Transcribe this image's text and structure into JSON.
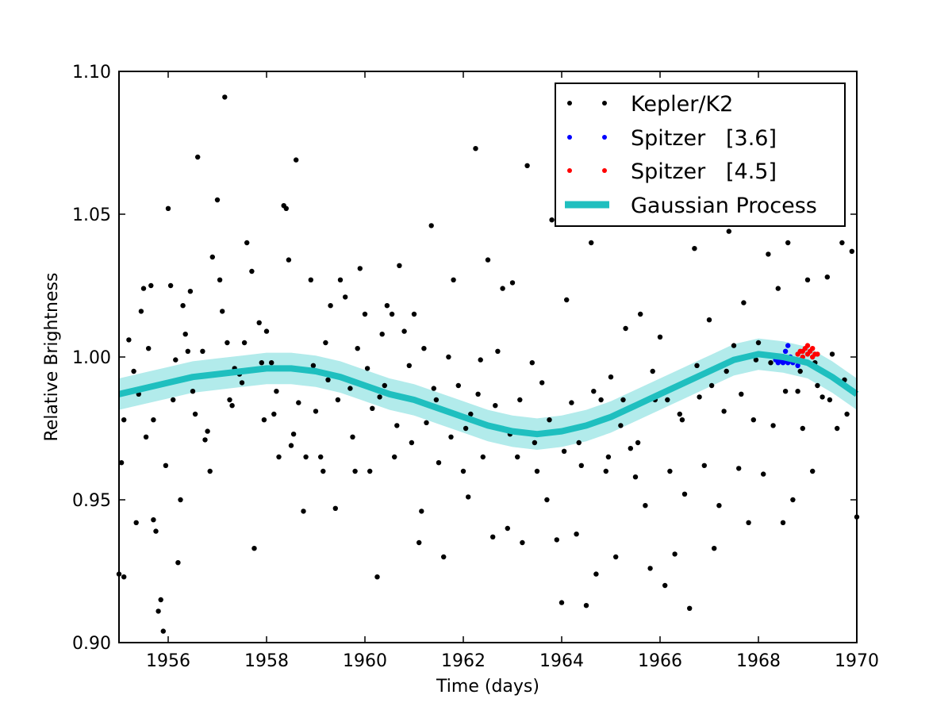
{
  "chart_data": {
    "type": "scatter",
    "title": "",
    "xlabel": "Time (days)",
    "ylabel": "Relative Brightness",
    "xlim": [
      1955,
      1970
    ],
    "ylim": [
      0.9,
      1.1
    ],
    "x_ticks": [
      1956,
      1958,
      1960,
      1962,
      1964,
      1966,
      1968,
      1970
    ],
    "x_tick_labels": [
      "1956",
      "1958",
      "1960",
      "1962",
      "1964",
      "1966",
      "1968",
      "1970"
    ],
    "y_ticks": [
      0.9,
      0.95,
      1.0,
      1.05,
      1.1
    ],
    "y_tick_labels": [
      "0.90",
      "0.95",
      "1.00",
      "1.05",
      "1.10"
    ],
    "grid": false,
    "legend_position": "top-right",
    "colors": {
      "kepler": "#000000",
      "spitzer36": "#0000ff",
      "spitzer45": "#ff0000",
      "gp_line": "#1fbfbf",
      "gp_band": "#b2ebeb"
    },
    "series": [
      {
        "name": "Kepler/K2",
        "kind": "points",
        "points": [
          [
            1955.0,
            0.924
          ],
          [
            1955.1,
            0.923
          ],
          [
            1955.05,
            0.963
          ],
          [
            1955.1,
            0.978
          ],
          [
            1955.2,
            1.006
          ],
          [
            1955.3,
            0.995
          ],
          [
            1955.35,
            0.942
          ],
          [
            1955.45,
            1.016
          ],
          [
            1955.5,
            1.024
          ],
          [
            1955.6,
            1.003
          ],
          [
            1955.55,
            0.972
          ],
          [
            1955.65,
            1.025
          ],
          [
            1955.7,
            0.943
          ],
          [
            1955.75,
            0.939
          ],
          [
            1955.8,
            0.911
          ],
          [
            1955.85,
            0.915
          ],
          [
            1955.9,
            0.904
          ],
          [
            1955.95,
            0.962
          ],
          [
            1956.0,
            1.052
          ],
          [
            1956.05,
            1.025
          ],
          [
            1956.1,
            0.985
          ],
          [
            1956.2,
            0.928
          ],
          [
            1956.25,
            0.95
          ],
          [
            1956.3,
            1.018
          ],
          [
            1956.35,
            1.008
          ],
          [
            1956.4,
            1.002
          ],
          [
            1956.45,
            1.023
          ],
          [
            1956.55,
            0.98
          ],
          [
            1956.6,
            1.07
          ],
          [
            1956.7,
            1.002
          ],
          [
            1956.75,
            0.971
          ],
          [
            1956.85,
            0.96
          ],
          [
            1956.9,
            1.035
          ],
          [
            1957.0,
            1.055
          ],
          [
            1957.05,
            1.027
          ],
          [
            1957.1,
            1.016
          ],
          [
            1957.15,
            1.091
          ],
          [
            1957.2,
            1.005
          ],
          [
            1957.3,
            0.983
          ],
          [
            1957.35,
            0.996
          ],
          [
            1957.45,
            0.994
          ],
          [
            1957.5,
            0.991
          ],
          [
            1957.6,
            1.04
          ],
          [
            1957.7,
            1.03
          ],
          [
            1957.75,
            0.933
          ],
          [
            1957.85,
            1.012
          ],
          [
            1957.9,
            0.998
          ],
          [
            1958.0,
            1.009
          ],
          [
            1958.1,
            0.998
          ],
          [
            1958.15,
            0.98
          ],
          [
            1958.25,
            0.965
          ],
          [
            1958.35,
            1.053
          ],
          [
            1958.4,
            1.052
          ],
          [
            1958.45,
            1.034
          ],
          [
            1958.5,
            0.969
          ],
          [
            1958.6,
            1.069
          ],
          [
            1958.65,
            0.984
          ],
          [
            1958.75,
            0.946
          ],
          [
            1958.8,
            0.965
          ],
          [
            1958.9,
            1.027
          ],
          [
            1959.0,
            0.981
          ],
          [
            1959.1,
            0.965
          ],
          [
            1959.15,
            0.96
          ],
          [
            1959.25,
            0.992
          ],
          [
            1959.3,
            1.018
          ],
          [
            1959.4,
            0.947
          ],
          [
            1959.5,
            1.027
          ],
          [
            1959.6,
            1.021
          ],
          [
            1959.7,
            0.989
          ],
          [
            1959.75,
            0.972
          ],
          [
            1959.85,
            1.003
          ],
          [
            1959.9,
            1.031
          ],
          [
            1960.0,
            1.015
          ],
          [
            1960.1,
            0.96
          ],
          [
            1960.15,
            0.982
          ],
          [
            1960.25,
            0.923
          ],
          [
            1960.35,
            1.008
          ],
          [
            1960.4,
            0.99
          ],
          [
            1960.45,
            1.018
          ],
          [
            1960.55,
            1.015
          ],
          [
            1960.6,
            0.965
          ],
          [
            1960.7,
            1.032
          ],
          [
            1960.8,
            1.009
          ],
          [
            1960.9,
            0.997
          ],
          [
            1961.0,
            1.015
          ],
          [
            1961.1,
            0.935
          ],
          [
            1961.15,
            0.946
          ],
          [
            1961.25,
            0.977
          ],
          [
            1961.35,
            1.046
          ],
          [
            1961.4,
            0.989
          ],
          [
            1961.5,
            0.963
          ],
          [
            1961.6,
            0.93
          ],
          [
            1961.7,
            1.0
          ],
          [
            1961.8,
            1.027
          ],
          [
            1961.9,
            0.99
          ],
          [
            1962.0,
            0.96
          ],
          [
            1962.1,
            0.951
          ],
          [
            1962.15,
            0.98
          ],
          [
            1962.25,
            1.073
          ],
          [
            1962.3,
            0.987
          ],
          [
            1962.4,
            0.965
          ],
          [
            1962.5,
            1.034
          ],
          [
            1962.6,
            0.937
          ],
          [
            1962.7,
            1.002
          ],
          [
            1962.8,
            1.024
          ],
          [
            1962.9,
            0.94
          ],
          [
            1963.0,
            1.026
          ],
          [
            1963.1,
            0.965
          ],
          [
            1963.2,
            0.935
          ],
          [
            1963.3,
            1.067
          ],
          [
            1963.4,
            0.998
          ],
          [
            1963.5,
            0.96
          ],
          [
            1963.6,
            0.991
          ],
          [
            1963.7,
            0.95
          ],
          [
            1963.8,
            1.048
          ],
          [
            1963.9,
            0.936
          ],
          [
            1964.0,
            0.914
          ],
          [
            1964.1,
            1.02
          ],
          [
            1964.2,
            0.984
          ],
          [
            1964.3,
            0.938
          ],
          [
            1964.4,
            0.962
          ],
          [
            1964.5,
            0.913
          ],
          [
            1964.6,
            1.04
          ],
          [
            1964.7,
            0.924
          ],
          [
            1964.8,
            0.985
          ],
          [
            1964.9,
            0.96
          ],
          [
            1965.0,
            0.993
          ],
          [
            1965.1,
            0.93
          ],
          [
            1965.2,
            0.976
          ],
          [
            1965.3,
            1.01
          ],
          [
            1965.4,
            0.968
          ],
          [
            1965.5,
            0.958
          ],
          [
            1965.6,
            1.015
          ],
          [
            1965.7,
            0.948
          ],
          [
            1965.8,
            0.926
          ],
          [
            1965.9,
            0.985
          ],
          [
            1966.0,
            1.007
          ],
          [
            1966.1,
            0.92
          ],
          [
            1966.2,
            0.96
          ],
          [
            1966.3,
            0.931
          ],
          [
            1966.4,
            0.98
          ],
          [
            1966.5,
            0.952
          ],
          [
            1966.6,
            0.912
          ],
          [
            1966.7,
            1.038
          ],
          [
            1966.8,
            0.986
          ],
          [
            1966.9,
            0.962
          ],
          [
            1967.0,
            1.013
          ],
          [
            1967.1,
            0.933
          ],
          [
            1967.2,
            0.948
          ],
          [
            1967.3,
            0.981
          ],
          [
            1967.4,
            1.044
          ],
          [
            1967.5,
            1.004
          ],
          [
            1967.6,
            0.961
          ],
          [
            1967.7,
            1.019
          ],
          [
            1967.8,
            0.942
          ],
          [
            1967.9,
            0.978
          ],
          [
            1968.0,
            1.005
          ],
          [
            1968.1,
            0.959
          ],
          [
            1968.2,
            1.036
          ],
          [
            1968.3,
            0.976
          ],
          [
            1968.4,
            1.024
          ],
          [
            1968.5,
            0.942
          ],
          [
            1968.6,
            1.04
          ],
          [
            1968.7,
            0.95
          ],
          [
            1968.8,
            0.988
          ],
          [
            1968.9,
            0.975
          ],
          [
            1969.0,
            1.027
          ],
          [
            1969.1,
            0.96
          ],
          [
            1969.2,
            0.99
          ],
          [
            1969.3,
            0.986
          ],
          [
            1969.4,
            1.028
          ],
          [
            1969.5,
            1.001
          ],
          [
            1969.6,
            0.975
          ],
          [
            1969.7,
            1.04
          ],
          [
            1969.8,
            0.98
          ],
          [
            1969.9,
            1.037
          ],
          [
            1970.0,
            0.944
          ],
          [
            1955.4,
            0.987
          ],
          [
            1955.7,
            0.978
          ],
          [
            1956.15,
            0.999
          ],
          [
            1956.5,
            0.988
          ],
          [
            1956.8,
            0.974
          ],
          [
            1957.25,
            0.985
          ],
          [
            1957.55,
            1.005
          ],
          [
            1957.95,
            0.978
          ],
          [
            1958.2,
            0.988
          ],
          [
            1958.55,
            0.973
          ],
          [
            1958.95,
            0.997
          ],
          [
            1959.2,
            1.005
          ],
          [
            1959.45,
            0.985
          ],
          [
            1959.8,
            0.96
          ],
          [
            1960.05,
            0.996
          ],
          [
            1960.3,
            0.986
          ],
          [
            1960.65,
            0.976
          ],
          [
            1960.95,
            0.97
          ],
          [
            1961.2,
            1.003
          ],
          [
            1961.45,
            0.985
          ],
          [
            1961.75,
            0.972
          ],
          [
            1962.05,
            0.975
          ],
          [
            1962.35,
            0.999
          ],
          [
            1962.65,
            0.983
          ],
          [
            1962.95,
            0.973
          ],
          [
            1963.15,
            0.985
          ],
          [
            1963.45,
            0.97
          ],
          [
            1963.75,
            0.978
          ],
          [
            1964.05,
            0.967
          ],
          [
            1964.35,
            0.97
          ],
          [
            1964.65,
            0.988
          ],
          [
            1964.95,
            0.965
          ],
          [
            1965.25,
            0.985
          ],
          [
            1965.55,
            0.97
          ],
          [
            1965.85,
            0.995
          ],
          [
            1966.15,
            0.985
          ],
          [
            1966.45,
            0.978
          ],
          [
            1966.75,
            0.997
          ],
          [
            1967.05,
            0.99
          ],
          [
            1967.35,
            0.995
          ],
          [
            1967.65,
            0.987
          ],
          [
            1967.95,
            0.999
          ],
          [
            1968.25,
            0.998
          ],
          [
            1968.55,
            0.988
          ],
          [
            1968.85,
            0.995
          ],
          [
            1969.15,
            0.998
          ],
          [
            1969.45,
            0.985
          ],
          [
            1969.75,
            0.992
          ]
        ]
      },
      {
        "name": "Spitzer   [3.6]",
        "kind": "points",
        "points": [
          [
            1968.35,
            0.999
          ],
          [
            1968.4,
            0.998
          ],
          [
            1968.45,
            0.999
          ],
          [
            1968.5,
            0.998
          ],
          [
            1968.55,
            0.999
          ],
          [
            1968.6,
            0.998
          ],
          [
            1968.65,
            1.0
          ],
          [
            1968.7,
            0.998
          ],
          [
            1968.75,
            0.999
          ],
          [
            1968.8,
            0.997
          ],
          [
            1968.85,
            0.999
          ],
          [
            1968.55,
            1.002
          ],
          [
            1968.6,
            1.004
          ]
        ]
      },
      {
        "name": "Spitzer   [4.5]",
        "kind": "points",
        "points": [
          [
            1968.8,
            1.001
          ],
          [
            1968.85,
            1.002
          ],
          [
            1968.9,
            1.0
          ],
          [
            1968.95,
            1.003
          ],
          [
            1969.0,
            1.001
          ],
          [
            1969.05,
            1.002
          ],
          [
            1969.1,
            1.0
          ],
          [
            1969.15,
            1.001
          ],
          [
            1969.0,
            1.004
          ],
          [
            1969.1,
            1.003
          ],
          [
            1968.9,
            1.002
          ],
          [
            1969.2,
            1.001
          ]
        ]
      },
      {
        "name": "Gaussian Process",
        "kind": "line",
        "points": [
          [
            1955.0,
            0.987
          ],
          [
            1955.5,
            0.989
          ],
          [
            1956.0,
            0.991
          ],
          [
            1956.5,
            0.993
          ],
          [
            1957.0,
            0.994
          ],
          [
            1957.5,
            0.995
          ],
          [
            1958.0,
            0.996
          ],
          [
            1958.5,
            0.996
          ],
          [
            1959.0,
            0.995
          ],
          [
            1959.5,
            0.993
          ],
          [
            1960.0,
            0.99
          ],
          [
            1960.5,
            0.987
          ],
          [
            1961.0,
            0.985
          ],
          [
            1961.5,
            0.982
          ],
          [
            1962.0,
            0.979
          ],
          [
            1962.5,
            0.976
          ],
          [
            1963.0,
            0.974
          ],
          [
            1963.5,
            0.973
          ],
          [
            1964.0,
            0.974
          ],
          [
            1964.5,
            0.976
          ],
          [
            1965.0,
            0.979
          ],
          [
            1965.5,
            0.983
          ],
          [
            1966.0,
            0.987
          ],
          [
            1966.5,
            0.991
          ],
          [
            1967.0,
            0.995
          ],
          [
            1967.5,
            0.999
          ],
          [
            1968.0,
            1.001
          ],
          [
            1968.5,
            1.0
          ],
          [
            1969.0,
            0.998
          ],
          [
            1969.5,
            0.993
          ],
          [
            1970.0,
            0.987
          ]
        ],
        "band_halfwidth": 0.0055
      }
    ]
  }
}
